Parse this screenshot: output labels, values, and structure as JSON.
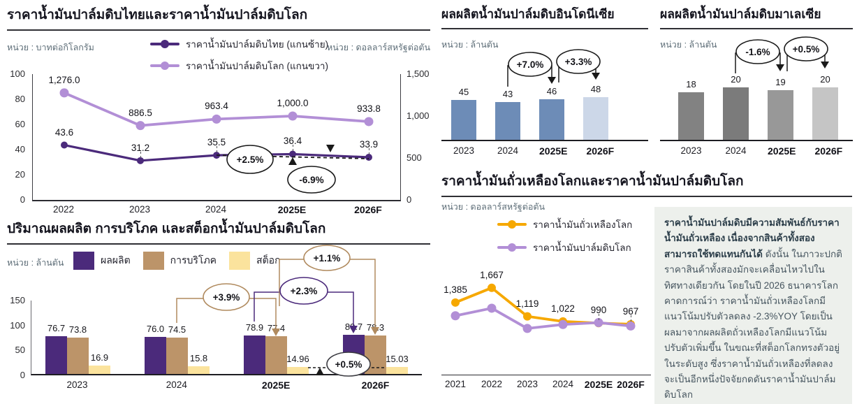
{
  "chart_data": [
    {
      "id": "thai_and_world_cpo_price",
      "type": "line",
      "title": "ราคาน้ำมันปาล์มดิบไทยและราคาน้ำมันปาล์มดิบโลก",
      "unit_left": "หน่วย : บาทต่อกิโลกรัม",
      "unit_right": "หน่วย : ดอลลาร์สหรัฐต่อตัน",
      "categories": [
        "2022",
        "2023",
        "2024",
        "2025E",
        "2026F"
      ],
      "series": [
        {
          "name": "ราคาน้ำมันปาล์มดิบไทย (แกนซ้าย)",
          "axis": "left",
          "color": "#4b2a7b",
          "values": [
            43.6,
            31.2,
            35.5,
            36.4,
            33.9
          ],
          "labels": [
            "43.6",
            "31.2",
            "35.5",
            "36.4",
            "33.9"
          ]
        },
        {
          "name": "ราคาน้ำมันปาล์มดิบโลก (แกนขวา)",
          "axis": "right",
          "color": "#b28fd6",
          "values": [
            1276.0,
            886.5,
            963.4,
            1000.0,
            933.8
          ],
          "labels": [
            "1,276.0",
            "886.5",
            "963.4",
            "1,000.0",
            "933.8"
          ]
        }
      ],
      "left_axis": {
        "min": 0,
        "max": 100,
        "ticks": [
          "100",
          "80",
          "60",
          "40",
          "20",
          "0"
        ]
      },
      "right_axis": {
        "min": 0,
        "max": 1500,
        "ticks": [
          "1,500",
          "1,000",
          "500",
          "0"
        ]
      },
      "annotations": [
        {
          "label": "+2.5%",
          "color": "#1a1a1a"
        },
        {
          "label": "-6.9%",
          "color": "#1a1a1a"
        }
      ],
      "legend_position": "top"
    },
    {
      "id": "world_cpo_production_consumption_stock",
      "type": "bar",
      "title": "ปริมาณผลผลิต การบริโภค และสต็อกน้ำมันปาล์มดิบโลก",
      "unit": "หน่วย : ล้านตัน",
      "categories": [
        "2023",
        "2024",
        "2025E",
        "2026F"
      ],
      "series": [
        {
          "name": "ผลผลิต",
          "color": "#4b2a7b",
          "values": [
            76.7,
            76.0,
            78.9,
            80.7
          ],
          "labels": [
            "76.7",
            "76.0",
            "78.9",
            "80.7"
          ]
        },
        {
          "name": "การบริโภค",
          "color": "#bc9469",
          "values": [
            73.8,
            74.5,
            77.4,
            78.3
          ],
          "labels": [
            "73.8",
            "74.5",
            "77.4",
            "78.3"
          ]
        },
        {
          "name": "สต็อก",
          "color": "#fbe39d",
          "values": [
            16.9,
            15.8,
            14.96,
            15.03
          ],
          "labels": [
            "16.9",
            "15.8",
            "14.96",
            "15.03"
          ]
        }
      ],
      "ylim": [
        0,
        150
      ],
      "y_ticks": [
        "150",
        "100",
        "50",
        "0"
      ],
      "annotations": [
        {
          "label": "+3.9%",
          "color": "#b08a5e"
        },
        {
          "label": "+2.3%",
          "color": "#4b2a7b"
        },
        {
          "label": "+1.1%",
          "color": "#b08a5e"
        },
        {
          "label": "+0.5%",
          "color": "#3a3a40"
        }
      ]
    },
    {
      "id": "indonesia_cpo_production",
      "type": "bar",
      "title": "ผลผลิตน้ำมันปาล์มดิบอินโดนีเซีย",
      "unit": "หน่วย : ล้านตัน",
      "categories": [
        "2023",
        "2024",
        "2025E",
        "2026F"
      ],
      "series": [
        {
          "name": "ผลผลิต",
          "color": "#6d8cb7",
          "colors": [
            "#6d8cb7",
            "#6d8cb7",
            "#6d8cb7",
            "#ccd7e8"
          ],
          "values": [
            45,
            43,
            46,
            48
          ],
          "labels": [
            "45",
            "43",
            "46",
            "48"
          ]
        }
      ],
      "annotations": [
        {
          "label": "+7.0%",
          "color": "#1a1a1a"
        },
        {
          "label": "+3.3%",
          "color": "#1a1a1a"
        }
      ]
    },
    {
      "id": "malaysia_cpo_production",
      "type": "bar",
      "title": "ผลผลิตน้ำมันปาล์มดิบมาเลเซีย",
      "unit": "หน่วย : ล้านตัน",
      "categories": [
        "2023",
        "2024",
        "2025E",
        "2026F"
      ],
      "series": [
        {
          "name": "ผลผลิต",
          "color": "#828282",
          "colors": [
            "#828282",
            "#7b7b7b",
            "#989898",
            "#c5c5c5"
          ],
          "values": [
            18,
            20,
            19,
            20
          ],
          "labels": [
            "18",
            "20",
            "19",
            "20"
          ]
        }
      ],
      "annotations": [
        {
          "label": "-1.6%",
          "color": "#1a1a1a"
        },
        {
          "label": "+0.5%",
          "color": "#1a1a1a"
        }
      ]
    },
    {
      "id": "world_soybean_oil_vs_cpo_price",
      "type": "line",
      "title": "ราคาน้ำมันถั่วเหลืองโลกและราคาน้ำมันปาล์มดิบโลก",
      "unit": "หน่วย : ดอลลาร์สหรัฐต่อตัน",
      "categories": [
        "2021",
        "2022",
        "2023",
        "2024",
        "2025E",
        "2026F"
      ],
      "series": [
        {
          "name": "ราคาน้ำมันถั่วเหลืองโลก",
          "color": "#f6a800",
          "values": [
            1385,
            1667,
            1119,
            1022,
            990,
            967
          ],
          "labels": [
            "1,385",
            "1,667",
            "1,119",
            "1,022",
            "990",
            "967"
          ]
        },
        {
          "name": "ราคาน้ำมันปาล์มดิบโลก",
          "color": "#b28fd6",
          "estimated": true,
          "values": [
            1131,
            1276,
            887,
            963,
            1000,
            934
          ]
        }
      ],
      "legend_position": "top"
    }
  ],
  "note": {
    "text_bold": "ราคาน้ำมันปาล์มดิบมีความสัมพันธ์กับราคาน้ำมันถั่วเหลือง เนื่องจากสินค้าทั้งสองสามารถใช้ทดแทนกันได้",
    "text": " ดังนั้น ในภาวะปกติ ราคาสินค้าทั้งสองมักจะเคลื่อนไหวไปในทิศทางเดียวกัน โดยในปี 2026 ธนาคารโลกคาดการณ์ว่า ราคาน้ำมันถั่วเหลืองโลกมีแนวโน้มปรับตัวลดลง -2.3%YOY โดยเป็นผลมาจากผลผลิตถั่วเหลืองโลกมีแนวโน้มปรับตัวเพิ่มขึ้น ในขณะที่สต็อกโลกทรงตัวอยู่ในระดับสูง ซึ่งราคาน้ำมันถั่วเหลืองที่ลดลง จะเป็นอีกหนึ่งปัจจัยกดดันราคาน้ำมันปาล์มดิบโลก",
    "background": "#edf0ec"
  }
}
